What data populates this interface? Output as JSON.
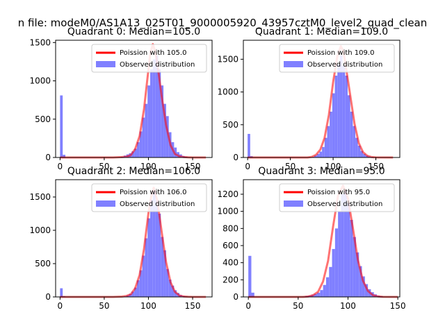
{
  "figure": {
    "suptitle": "n file: modeM0/AS1A13_025T01_9000005920_43957cztM0_level2_quad_clean"
  },
  "colors": {
    "hist": "#8080ff",
    "fit": "#ff0000",
    "axis": "#000000",
    "background": "#ffffff"
  },
  "chart_data": [
    {
      "type": "bar",
      "title": "Quadrant 0: Median=105.0",
      "xlabel": "",
      "ylabel": "",
      "xlim": [
        -5,
        172
      ],
      "ylim": [
        0,
        1530
      ],
      "xticks": [
        0,
        50,
        100,
        150
      ],
      "yticks": [
        0,
        500,
        1000,
        1500
      ],
      "grid": false,
      "legend_position": "top-right",
      "series": [
        {
          "name": "Poission with 105.0",
          "kind": "line",
          "x": [
            0,
            60,
            70,
            75,
            80,
            85,
            90,
            95,
            100,
            102,
            105,
            108,
            110,
            115,
            120,
            125,
            130,
            135,
            140,
            145,
            150,
            165
          ],
          "y": [
            0,
            0,
            5,
            10,
            30,
            110,
            280,
            630,
            1150,
            1350,
            1480,
            1370,
            1230,
            800,
            420,
            160,
            45,
            15,
            5,
            2,
            0,
            0
          ]
        },
        {
          "name": "Observed distribution",
          "kind": "hist",
          "binwidth": 3,
          "bins": [
            [
              0,
              810
            ],
            [
              3,
              35
            ],
            [
              66,
              5
            ],
            [
              69,
              10
            ],
            [
              72,
              25
            ],
            [
              75,
              40
            ],
            [
              78,
              55
            ],
            [
              81,
              80
            ],
            [
              84,
              115
            ],
            [
              87,
              200
            ],
            [
              90,
              340
            ],
            [
              93,
              520
            ],
            [
              96,
              700
            ],
            [
              99,
              940
            ],
            [
              102,
              1150
            ],
            [
              105,
              1280
            ],
            [
              108,
              1330
            ],
            [
              111,
              1150
            ],
            [
              114,
              940
            ],
            [
              117,
              700
            ],
            [
              120,
              540
            ],
            [
              123,
              330
            ],
            [
              126,
              200
            ],
            [
              129,
              130
            ],
            [
              132,
              70
            ],
            [
              135,
              40
            ],
            [
              138,
              20
            ],
            [
              141,
              10
            ],
            [
              144,
              5
            ]
          ]
        }
      ]
    },
    {
      "type": "bar",
      "title": "Quadrant 1: Median=109.0",
      "xlabel": "",
      "ylabel": "",
      "xlim": [
        -5,
        178
      ],
      "ylim": [
        0,
        1790
      ],
      "xticks": [
        0,
        50,
        100,
        150
      ],
      "yticks": [
        0,
        500,
        1000,
        1500
      ],
      "grid": false,
      "legend_position": "top-right",
      "series": [
        {
          "name": "Poission with 109.0",
          "kind": "line",
          "x": [
            0,
            70,
            75,
            80,
            85,
            90,
            95,
            100,
            105,
            109,
            112,
            115,
            120,
            125,
            130,
            135,
            140,
            145,
            150,
            170
          ],
          "y": [
            0,
            0,
            10,
            40,
            120,
            300,
            650,
            1150,
            1550,
            1700,
            1620,
            1380,
            950,
            520,
            220,
            80,
            25,
            6,
            1,
            0
          ]
        },
        {
          "name": "Observed distribution",
          "kind": "hist",
          "binwidth": 3,
          "bins": [
            [
              0,
              360
            ],
            [
              3,
              20
            ],
            [
              72,
              5
            ],
            [
              75,
              10
            ],
            [
              78,
              30
            ],
            [
              81,
              55
            ],
            [
              84,
              90
            ],
            [
              87,
              160
            ],
            [
              90,
              300
            ],
            [
              93,
              480
            ],
            [
              96,
              700
            ],
            [
              99,
              980
            ],
            [
              102,
              1250
            ],
            [
              105,
              1420
            ],
            [
              108,
              1560
            ],
            [
              111,
              1400
            ],
            [
              114,
              1250
            ],
            [
              117,
              950
            ],
            [
              120,
              700
            ],
            [
              123,
              480
            ],
            [
              126,
              300
            ],
            [
              129,
              180
            ],
            [
              132,
              100
            ],
            [
              135,
              55
            ],
            [
              138,
              30
            ],
            [
              141,
              15
            ],
            [
              144,
              8
            ]
          ]
        }
      ]
    },
    {
      "type": "bar",
      "title": "Quadrant 2: Median=106.0",
      "xlabel": "",
      "ylabel": "",
      "xlim": [
        -5,
        172
      ],
      "ylim": [
        0,
        1760
      ],
      "xticks": [
        0,
        50,
        100,
        150
      ],
      "yticks": [
        0,
        500,
        1000,
        1500
      ],
      "grid": false,
      "legend_position": "top-right",
      "series": [
        {
          "name": "Poission with 106.0",
          "kind": "line",
          "x": [
            0,
            60,
            70,
            75,
            80,
            85,
            90,
            95,
            100,
            103,
            106,
            110,
            115,
            120,
            125,
            130,
            135,
            140,
            145,
            150,
            165
          ],
          "y": [
            0,
            0,
            5,
            15,
            40,
            130,
            330,
            720,
            1260,
            1500,
            1640,
            1450,
            980,
            520,
            220,
            75,
            22,
            6,
            2,
            0,
            0
          ]
        },
        {
          "name": "Observed distribution",
          "kind": "hist",
          "binwidth": 3,
          "bins": [
            [
              0,
              130
            ],
            [
              3,
              10
            ],
            [
              69,
              5
            ],
            [
              72,
              10
            ],
            [
              75,
              25
            ],
            [
              78,
              45
            ],
            [
              81,
              80
            ],
            [
              84,
              140
            ],
            [
              87,
              250
            ],
            [
              90,
              400
            ],
            [
              93,
              620
            ],
            [
              96,
              880
            ],
            [
              99,
              1180
            ],
            [
              102,
              1460
            ],
            [
              105,
              1600
            ],
            [
              108,
              1450
            ],
            [
              111,
              1250
            ],
            [
              114,
              900
            ],
            [
              117,
              700
            ],
            [
              120,
              420
            ],
            [
              123,
              260
            ],
            [
              126,
              170
            ],
            [
              129,
              100
            ],
            [
              132,
              60
            ],
            [
              135,
              30
            ],
            [
              138,
              15
            ],
            [
              141,
              8
            ],
            [
              144,
              4
            ]
          ]
        }
      ]
    },
    {
      "type": "bar",
      "title": "Quadrant 3: Median=95.0",
      "xlabel": "",
      "ylabel": "",
      "xlim": [
        -5,
        152
      ],
      "ylim": [
        0,
        1370
      ],
      "xticks": [
        0,
        50,
        100,
        150
      ],
      "yticks": [
        0,
        200,
        400,
        600,
        800,
        1000,
        1200
      ],
      "grid": false,
      "legend_position": "top-right",
      "series": [
        {
          "name": "Poission with 95.0",
          "kind": "line",
          "x": [
            0,
            55,
            60,
            65,
            70,
            75,
            80,
            85,
            90,
            95,
            100,
            105,
            110,
            115,
            120,
            125,
            130,
            135,
            150
          ],
          "y": [
            0,
            0,
            5,
            20,
            60,
            180,
            420,
            820,
            1180,
            1300,
            1150,
            800,
            430,
            190,
            70,
            20,
            6,
            1,
            0
          ]
        },
        {
          "name": "Observed distribution",
          "kind": "hist",
          "binwidth": 3,
          "bins": [
            [
              0,
              480
            ],
            [
              3,
              50
            ],
            [
              48,
              3
            ],
            [
              54,
              5
            ],
            [
              57,
              10
            ],
            [
              60,
              15
            ],
            [
              63,
              25
            ],
            [
              66,
              35
            ],
            [
              69,
              50
            ],
            [
              72,
              80
            ],
            [
              75,
              140
            ],
            [
              78,
              230
            ],
            [
              81,
              350
            ],
            [
              84,
              560
            ],
            [
              87,
              800
            ],
            [
              90,
              1000
            ],
            [
              93,
              1200
            ],
            [
              96,
              1240
            ],
            [
              99,
              1100
            ],
            [
              102,
              900
            ],
            [
              105,
              700
            ],
            [
              108,
              520
            ],
            [
              111,
              360
            ],
            [
              114,
              240
            ],
            [
              117,
              150
            ],
            [
              120,
              90
            ],
            [
              123,
              55
            ],
            [
              126,
              30
            ],
            [
              129,
              15
            ],
            [
              132,
              8
            ]
          ]
        }
      ]
    }
  ]
}
